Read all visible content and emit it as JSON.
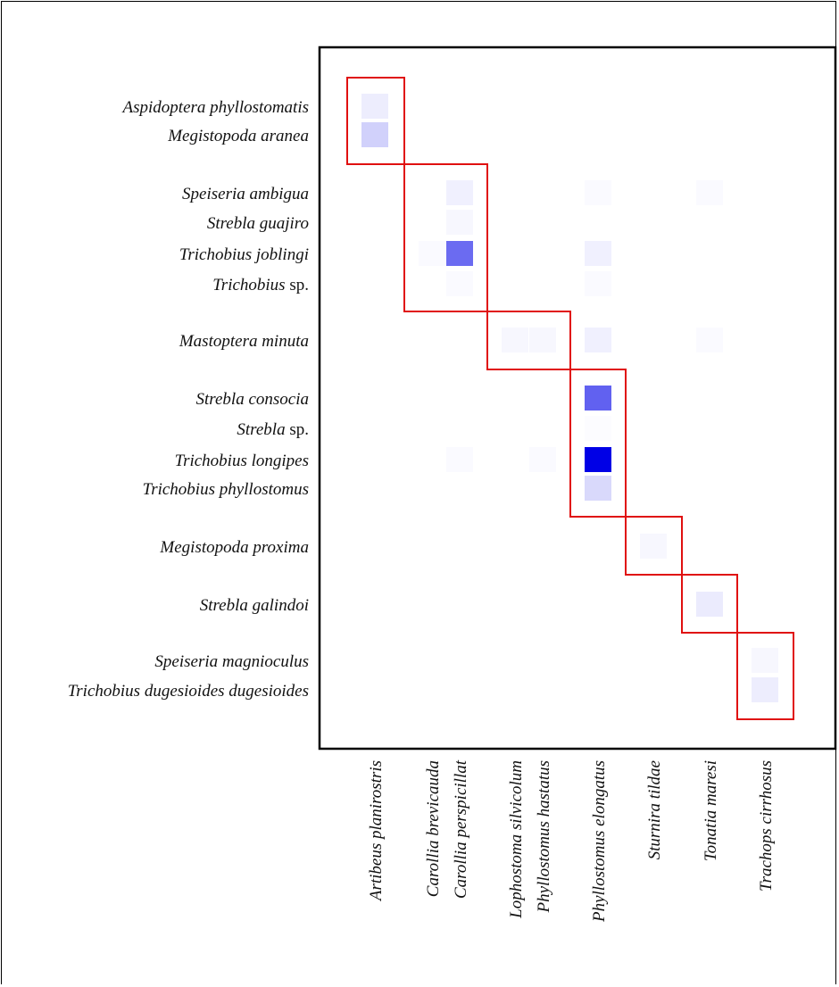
{
  "chart_data": {
    "type": "heatmap",
    "colors": {
      "max": "#0000e6",
      "min": "#ffffff",
      "module_border": "#e01010",
      "frame": "#000000"
    },
    "rows": [
      {
        "genus": "Aspidoptera phyllostomatis",
        "suffix": ""
      },
      {
        "genus": "Megistopoda aranea",
        "suffix": ""
      },
      {
        "genus": "Speiseria ambigua",
        "suffix": ""
      },
      {
        "genus": "Strebla guajiro",
        "suffix": ""
      },
      {
        "genus": "Trichobius joblingi",
        "suffix": ""
      },
      {
        "genus": "Trichobius",
        "suffix": " sp."
      },
      {
        "genus": "Mastoptera minuta",
        "suffix": ""
      },
      {
        "genus": "Strebla consocia",
        "suffix": ""
      },
      {
        "genus": "Strebla",
        "suffix": " sp."
      },
      {
        "genus": "Trichobius longipes",
        "suffix": ""
      },
      {
        "genus": "Trichobius phyllostomus",
        "suffix": ""
      },
      {
        "genus": "Megistopoda proxima",
        "suffix": ""
      },
      {
        "genus": "Strebla galindoi",
        "suffix": ""
      },
      {
        "genus": "Speiseria magnioculus",
        "suffix": ""
      },
      {
        "genus": "Trichobius dugesioides dugesioides",
        "suffix": ""
      }
    ],
    "columns": [
      "Artibeus planirostris",
      "Carollia brevicauda",
      "Carollia perspicillat",
      "Lophostoma silvicolum",
      "Phyllostomus hastatus",
      "Phyllostomus elongatus",
      "Sturnira tildae",
      "Tonatia maresi",
      "Trachops cirrhosus"
    ],
    "cells": [
      [
        0,
        0,
        0.07
      ],
      [
        1,
        0,
        0.18
      ],
      [
        2,
        2,
        0.06
      ],
      [
        2,
        5,
        0.02
      ],
      [
        2,
        7,
        0.02
      ],
      [
        3,
        2,
        0.03
      ],
      [
        4,
        1,
        0.02
      ],
      [
        4,
        2,
        0.58
      ],
      [
        4,
        5,
        0.06
      ],
      [
        5,
        2,
        0.02
      ],
      [
        5,
        5,
        0.02
      ],
      [
        6,
        3,
        0.03
      ],
      [
        6,
        4,
        0.03
      ],
      [
        6,
        5,
        0.06
      ],
      [
        6,
        7,
        0.02
      ],
      [
        7,
        5,
        0.62
      ],
      [
        8,
        5,
        0.01
      ],
      [
        9,
        2,
        0.02
      ],
      [
        9,
        4,
        0.02
      ],
      [
        9,
        5,
        1.0
      ],
      [
        10,
        5,
        0.15
      ],
      [
        11,
        6,
        0.03
      ],
      [
        12,
        7,
        0.08
      ],
      [
        13,
        8,
        0.03
      ],
      [
        14,
        8,
        0.07
      ]
    ],
    "modules": [
      {
        "rows": [
          0,
          1
        ],
        "cols": [
          0,
          0
        ]
      },
      {
        "rows": [
          2,
          5
        ],
        "cols": [
          1,
          2
        ]
      },
      {
        "rows": [
          6,
          6
        ],
        "cols": [
          3,
          4
        ]
      },
      {
        "rows": [
          7,
          10
        ],
        "cols": [
          5,
          5
        ]
      },
      {
        "rows": [
          11,
          11
        ],
        "cols": [
          6,
          6
        ]
      },
      {
        "rows": [
          12,
          12
        ],
        "cols": [
          7,
          7
        ]
      },
      {
        "rows": [
          13,
          14
        ],
        "cols": [
          8,
          8
        ]
      }
    ],
    "title": "",
    "xlabel": "",
    "ylabel": ""
  }
}
